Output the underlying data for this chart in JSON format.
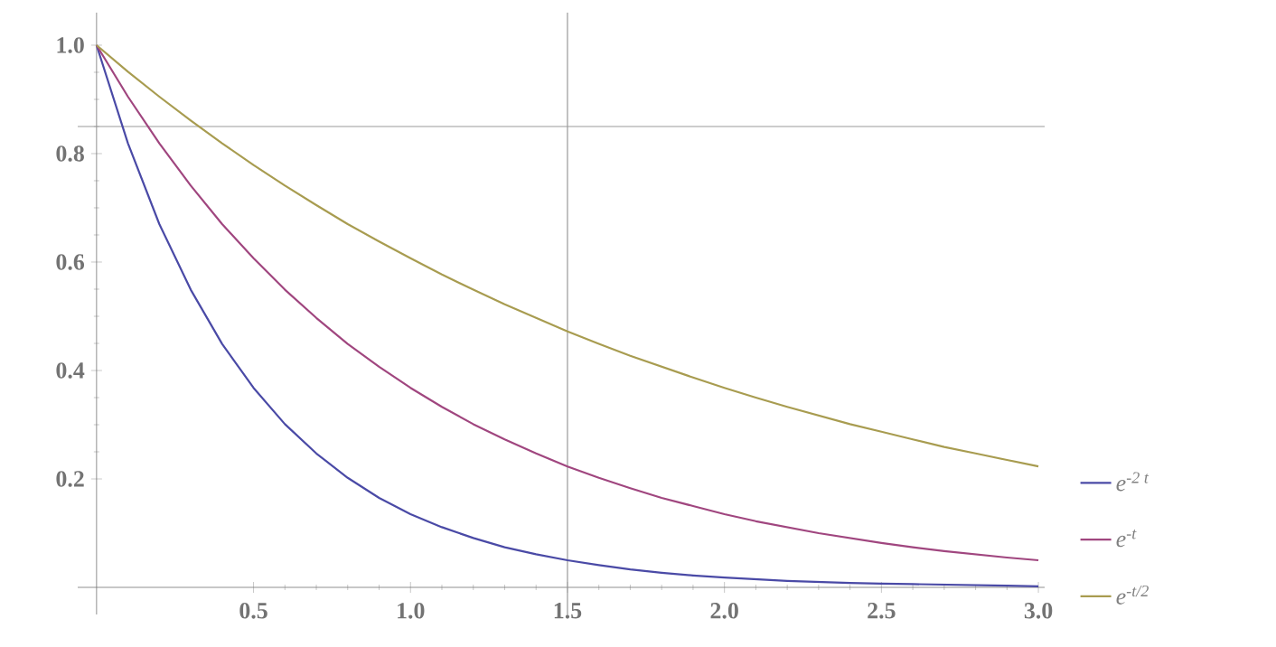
{
  "chart_data": {
    "type": "line",
    "x": [
      0,
      0.1,
      0.2,
      0.3,
      0.4,
      0.5,
      0.6,
      0.7,
      0.8,
      0.9,
      1.0,
      1.1,
      1.2,
      1.3,
      1.4,
      1.5,
      1.6,
      1.7,
      1.8,
      1.9,
      2.0,
      2.1,
      2.2,
      2.3,
      2.4,
      2.5,
      2.6,
      2.7,
      2.8,
      2.9,
      3.0
    ],
    "series": [
      {
        "name": "e$^{-2 t}$",
        "color": "#4a4aa6",
        "values": [
          1,
          0.819,
          0.67,
          0.549,
          0.449,
          0.368,
          0.301,
          0.247,
          0.202,
          0.165,
          0.135,
          0.111,
          0.091,
          0.074,
          0.061,
          0.05,
          0.041,
          0.033,
          0.027,
          0.022,
          0.018,
          0.015,
          0.012,
          0.01,
          0.008,
          0.007,
          0.006,
          0.005,
          0.004,
          0.003,
          0.002
        ]
      },
      {
        "name": "e$^{-t}$",
        "color": "#a0467f",
        "values": [
          1,
          0.905,
          0.819,
          0.741,
          0.67,
          0.607,
          0.549,
          0.497,
          0.449,
          0.407,
          0.368,
          0.333,
          0.301,
          0.273,
          0.247,
          0.223,
          0.202,
          0.183,
          0.165,
          0.15,
          0.135,
          0.122,
          0.111,
          0.1,
          0.091,
          0.082,
          0.074,
          0.067,
          0.061,
          0.055,
          0.05
        ]
      },
      {
        "name": "e$^{-t/2}$",
        "color": "#a89c50",
        "values": [
          1,
          0.951,
          0.905,
          0.861,
          0.819,
          0.779,
          0.741,
          0.705,
          0.67,
          0.638,
          0.607,
          0.577,
          0.549,
          0.522,
          0.497,
          0.472,
          0.449,
          0.427,
          0.407,
          0.387,
          0.368,
          0.35,
          0.333,
          0.317,
          0.301,
          0.287,
          0.273,
          0.259,
          0.247,
          0.235,
          0.223
        ]
      }
    ],
    "xlim": [
      -0.06,
      3.02
    ],
    "ylim": [
      -0.05,
      1.06
    ],
    "xticks": [
      0.5,
      {
        "value": 1,
        "label": "1.0"
      },
      1.5,
      {
        "value": 2,
        "label": "2.0"
      },
      2.5,
      {
        "value": 3,
        "label": "3.0"
      }
    ],
    "yticks": [
      0.2,
      0.4,
      0.6,
      0.8,
      {
        "value": 1,
        "label": "1.0"
      }
    ],
    "ref_lines": [
      {
        "axis": "y",
        "value": 0.85,
        "color": "#999999"
      },
      {
        "axis": "x",
        "value": 1.5,
        "color": "#999999"
      }
    ],
    "legend": "right"
  }
}
